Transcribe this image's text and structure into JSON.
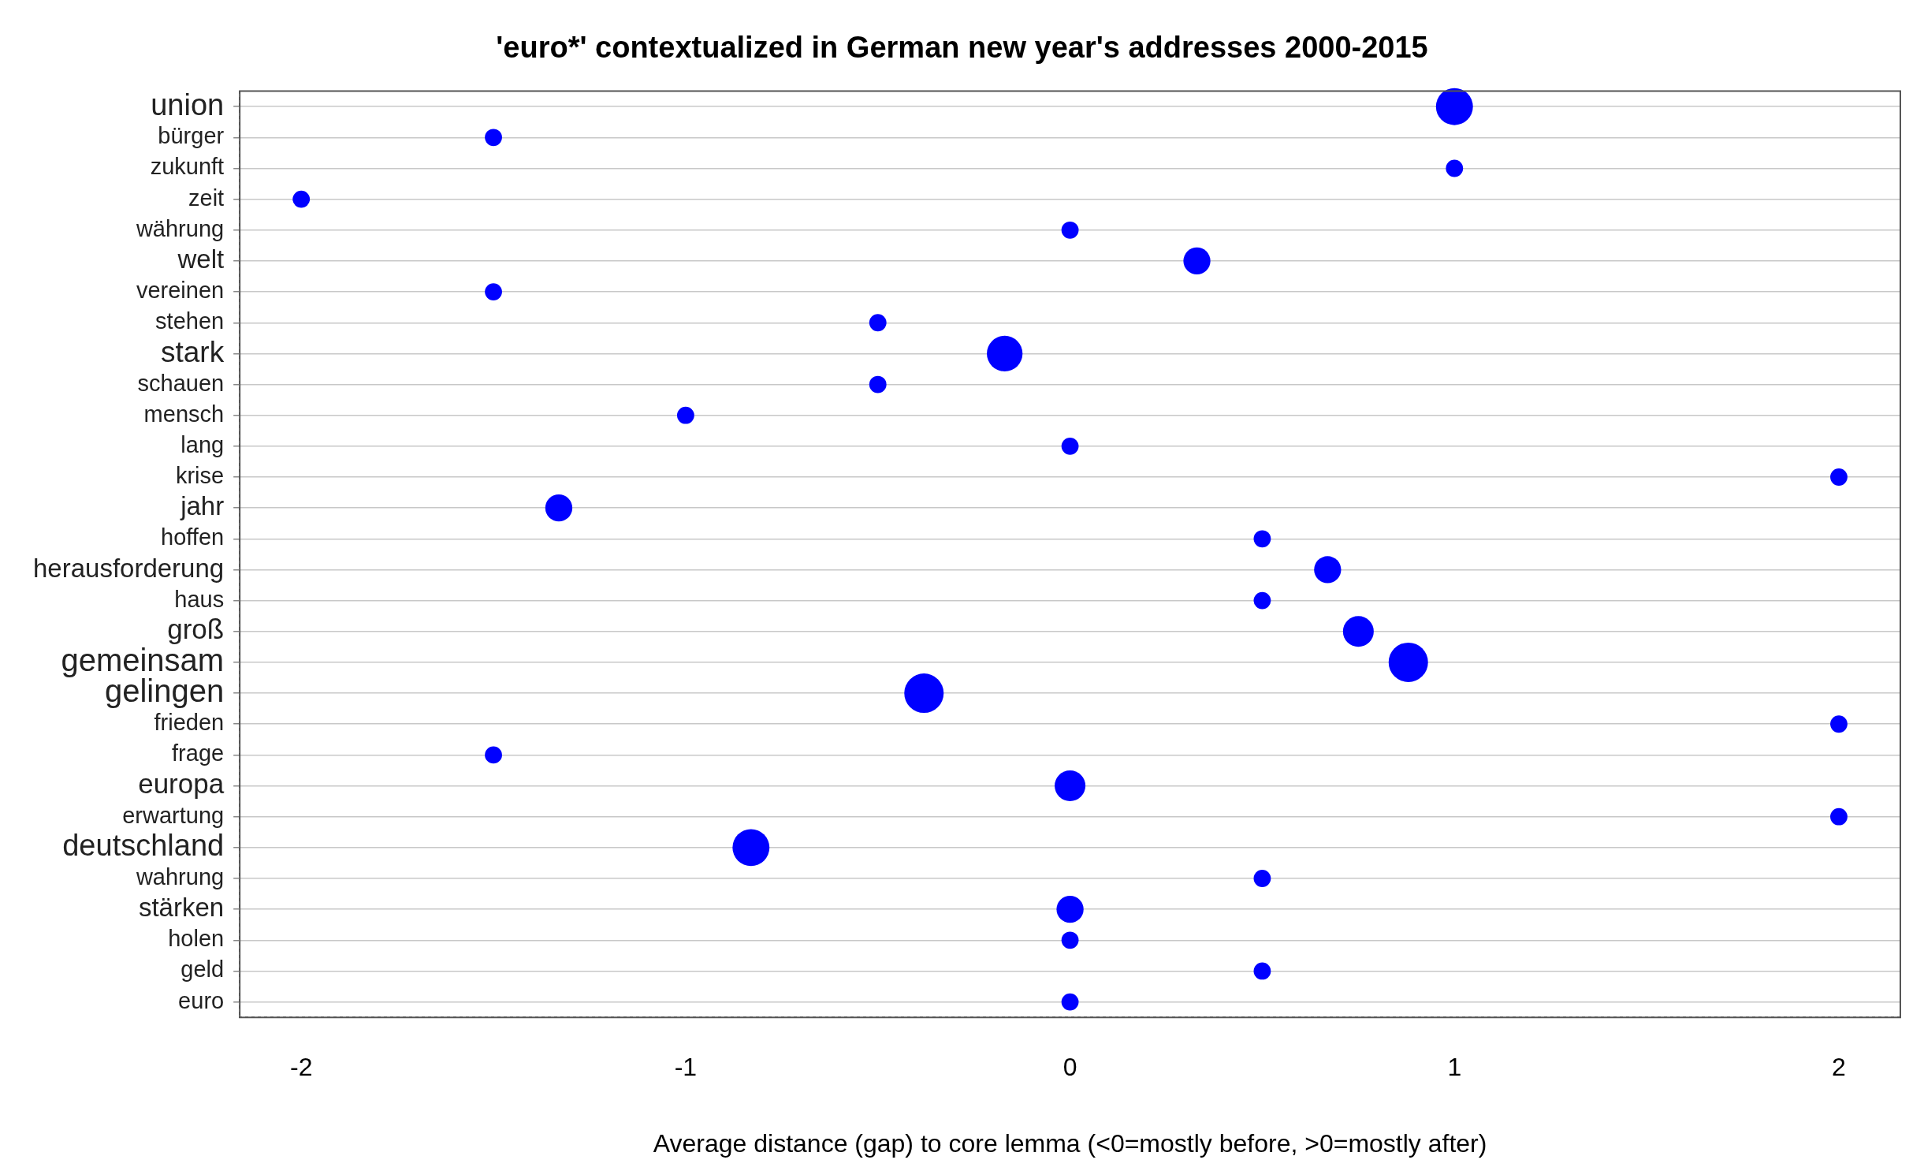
{
  "chart_data": {
    "type": "bubble",
    "orientation": "horizontal",
    "title": "'euro*' contextualized in German new year's addresses 2000-2015",
    "xlabel": "Average distance (gap) to core lemma (<0=mostly before, >0=mostly after)",
    "categories": [
      "union",
      "bürger",
      "zukunft",
      "zeit",
      "währung",
      "welt",
      "vereinen",
      "stehen",
      "stark",
      "schauen",
      "mensch",
      "lang",
      "krise",
      "jahr",
      "hoffen",
      "herausforderung",
      "haus",
      "groß",
      "gemeinsam",
      "gelingen",
      "frieden",
      "frage",
      "europa",
      "erwartung",
      "deutschland",
      "wahrung",
      "stärken",
      "holen",
      "geld",
      "euro"
    ],
    "values": [
      1,
      -1.5,
      1,
      -2,
      0,
      0.33,
      -1.5,
      -0.5,
      -0.17,
      -0.5,
      -1,
      0,
      2,
      -1.33,
      0.5,
      0.67,
      0.5,
      0.75,
      0.88,
      -0.38,
      2,
      -1.5,
      0,
      2,
      -0.83,
      0.5,
      0,
      0,
      0.5,
      0
    ],
    "sizes": [
      0.88,
      0.19,
      0.19,
      0.19,
      0.19,
      0.47,
      0.19,
      0.19,
      0.82,
      0.19,
      0.19,
      0.19,
      0.19,
      0.47,
      0.19,
      0.47,
      0.19,
      0.61,
      1,
      1,
      0.19,
      0.19,
      0.61,
      0.19,
      0.88,
      0.19,
      0.47,
      0.19,
      0.19,
      0.19
    ],
    "color": "#0000ff",
    "xlim": [
      -2.16,
      2.16
    ],
    "xticks": [
      -2,
      -1,
      0,
      1,
      2
    ],
    "grid": "y"
  }
}
